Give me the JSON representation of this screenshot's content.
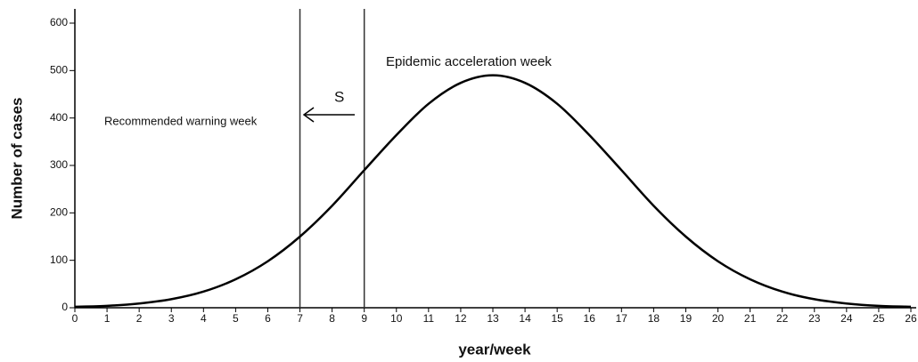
{
  "chart_data": {
    "type": "line",
    "x": [
      0,
      1,
      2,
      3,
      4,
      5,
      6,
      7,
      8,
      9,
      10,
      11,
      12,
      13,
      14,
      15,
      16,
      17,
      18,
      19,
      20,
      21,
      22,
      23,
      24,
      25,
      26
    ],
    "series": [
      {
        "color": "#000000",
        "values": [
          2,
          4,
          9,
          18,
          34,
          60,
          98,
          150,
          215,
          290,
          364,
          430,
          474,
          490,
          474,
          430,
          364,
          290,
          215,
          150,
          98,
          60,
          34,
          18,
          9,
          4,
          2
        ]
      }
    ],
    "xlim": [
      0,
      26
    ],
    "xticks": [
      0,
      1,
      2,
      3,
      4,
      5,
      6,
      7,
      8,
      9,
      10,
      11,
      12,
      13,
      14,
      15,
      16,
      17,
      18,
      19,
      20,
      21,
      22,
      23,
      24,
      25,
      26
    ],
    "ylim": [
      0,
      630
    ],
    "yticks": [
      0,
      100,
      200,
      300,
      400,
      500,
      600
    ],
    "x_label": "year/week",
    "y_label": "Number of cases",
    "vlines": [
      7,
      9
    ],
    "annotations": [
      "Epidemic acceleration week",
      "Recommended warning week",
      "S"
    ]
  }
}
